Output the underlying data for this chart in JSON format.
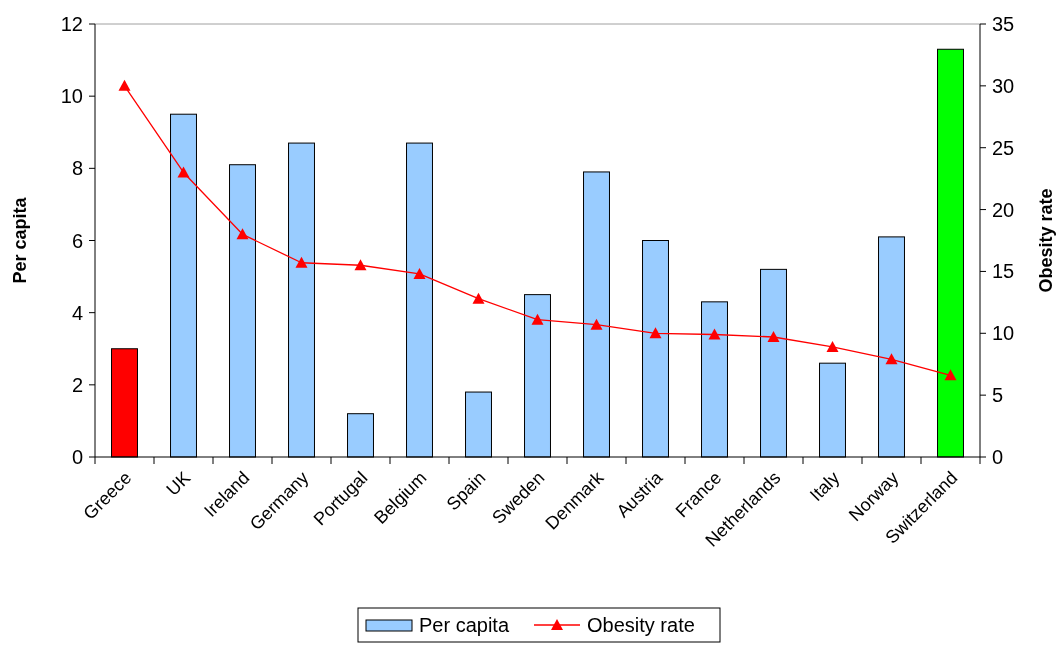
{
  "chart_data": {
    "type": "bar",
    "categories": [
      "Greece",
      "UK",
      "Ireland",
      "Germany",
      "Portugal",
      "Belgium",
      "Spain",
      "Sweden",
      "Denmark",
      "Austria",
      "France",
      "Netherlands",
      "Italy",
      "Norway",
      "Switzerland"
    ],
    "series": [
      {
        "name": "Per capita",
        "type": "bar",
        "color": "#99ccff",
        "colors": [
          "#ff0000",
          "#99ccff",
          "#99ccff",
          "#99ccff",
          "#99ccff",
          "#99ccff",
          "#99ccff",
          "#99ccff",
          "#99ccff",
          "#99ccff",
          "#99ccff",
          "#99ccff",
          "#99ccff",
          "#99ccff",
          "#00ff00"
        ],
        "values": [
          3.0,
          9.5,
          8.1,
          8.7,
          1.2,
          8.7,
          1.8,
          4.5,
          7.9,
          6.0,
          4.3,
          5.2,
          2.6,
          6.1,
          11.3
        ]
      },
      {
        "name": "Obesity rate",
        "type": "line",
        "axis": "y2",
        "color": "#ff0000",
        "marker": "triangle",
        "values": [
          30,
          23,
          18,
          15.7,
          15.5,
          14.8,
          12.8,
          11.1,
          10.7,
          10.0,
          9.9,
          9.7,
          8.9,
          7.9,
          6.6
        ]
      }
    ],
    "ylabel": "Per capita",
    "y2label": "Obesity rate",
    "ylim": [
      0,
      12
    ],
    "yticks": [
      0,
      2,
      4,
      6,
      8,
      10,
      12
    ],
    "y2lim": [
      0,
      35
    ],
    "y2ticks": [
      0,
      5,
      10,
      15,
      20,
      25,
      30,
      35
    ],
    "grid": false,
    "legend": "bottom"
  }
}
